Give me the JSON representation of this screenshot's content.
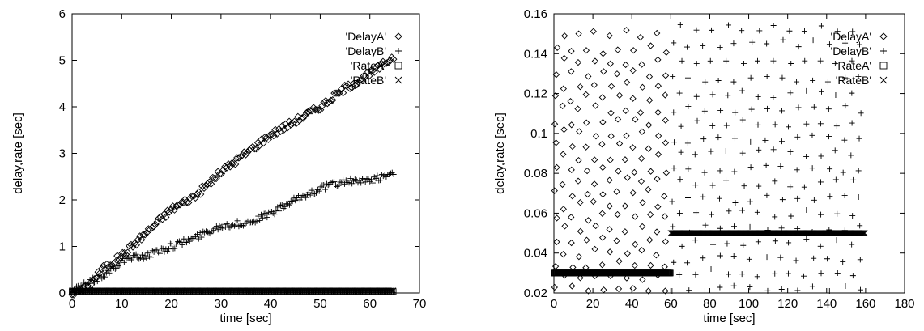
{
  "chart_data": [
    {
      "type": "scatter",
      "xlabel": "time [sec]",
      "ylabel": "delay,rate [sec]",
      "xlim": [
        0,
        70
      ],
      "ylim": [
        0,
        6
      ],
      "xticks": [
        0,
        10,
        20,
        30,
        40,
        50,
        60,
        70
      ],
      "yticks": [
        0,
        1,
        2,
        3,
        4,
        5,
        6
      ],
      "grid": false,
      "legend_position": "top-right",
      "series": [
        {
          "name": "'DelayA'",
          "marker": "diamond",
          "density": "dense",
          "x": [
            0,
            3,
            6,
            10,
            15,
            20,
            25,
            30,
            35,
            40,
            45,
            50,
            55,
            60,
            65
          ],
          "y": [
            0,
            0.1,
            0.5,
            0.8,
            1.3,
            1.8,
            2.1,
            2.6,
            3.0,
            3.4,
            3.7,
            4.0,
            4.4,
            4.7,
            5.1
          ]
        },
        {
          "name": "'DelayB'",
          "marker": "plus",
          "density": "dense",
          "x": [
            0,
            5,
            8,
            10,
            12,
            15,
            20,
            25,
            30,
            35,
            40,
            45,
            50,
            55,
            60,
            65
          ],
          "y": [
            0.05,
            0.3,
            0.5,
            0.7,
            0.75,
            0.8,
            1.0,
            1.2,
            1.45,
            1.5,
            1.7,
            2.0,
            2.25,
            2.4,
            2.4,
            2.6
          ]
        },
        {
          "name": "'RateA'",
          "marker": "square",
          "density": "dense",
          "x": [
            0,
            65
          ],
          "y": [
            0.03,
            0.03
          ]
        },
        {
          "name": "'RateB'",
          "marker": "cross",
          "density": "dense",
          "x": [
            0,
            65
          ],
          "y": [
            0.05,
            0.05
          ]
        }
      ]
    },
    {
      "type": "scatter",
      "xlabel": "time [sec]",
      "ylabel": "delay,rate [sec]",
      "xlim": [
        0,
        180
      ],
      "ylim": [
        0.02,
        0.16
      ],
      "xticks": [
        0,
        20,
        40,
        60,
        80,
        100,
        120,
        140,
        160,
        180
      ],
      "yticks": [
        0.02,
        0.04,
        0.06,
        0.08,
        0.1,
        0.12,
        0.14,
        0.16
      ],
      "grid": false,
      "legend_position": "top-right",
      "series": [
        {
          "name": "'DelayA'",
          "marker": "diamond",
          "density": "sparse",
          "x_range": [
            0,
            60
          ],
          "y_range": [
            0.02,
            0.155
          ],
          "y_levels": [
            0.022,
            0.028,
            0.034,
            0.04,
            0.046,
            0.052,
            0.058,
            0.064,
            0.07,
            0.076,
            0.082,
            0.088,
            0.094,
            0.1,
            0.106,
            0.112,
            0.118,
            0.124,
            0.13,
            0.136,
            0.142,
            0.15
          ]
        },
        {
          "name": "'DelayB'",
          "marker": "plus",
          "density": "sparse",
          "x_range": [
            60,
            160
          ],
          "y_range": [
            0.02,
            0.155
          ],
          "y_levels": [
            0.022,
            0.03,
            0.037,
            0.045,
            0.052,
            0.06,
            0.067,
            0.075,
            0.082,
            0.09,
            0.097,
            0.105,
            0.112,
            0.12,
            0.127,
            0.135,
            0.145,
            0.153
          ]
        },
        {
          "name": "'RateA'",
          "marker": "square",
          "density": "dense",
          "x": [
            0,
            60
          ],
          "y": [
            0.03,
            0.03
          ]
        },
        {
          "name": "'RateB'",
          "marker": "cross",
          "density": "dense",
          "x": [
            60,
            160
          ],
          "y": [
            0.05,
            0.05
          ]
        }
      ]
    }
  ]
}
